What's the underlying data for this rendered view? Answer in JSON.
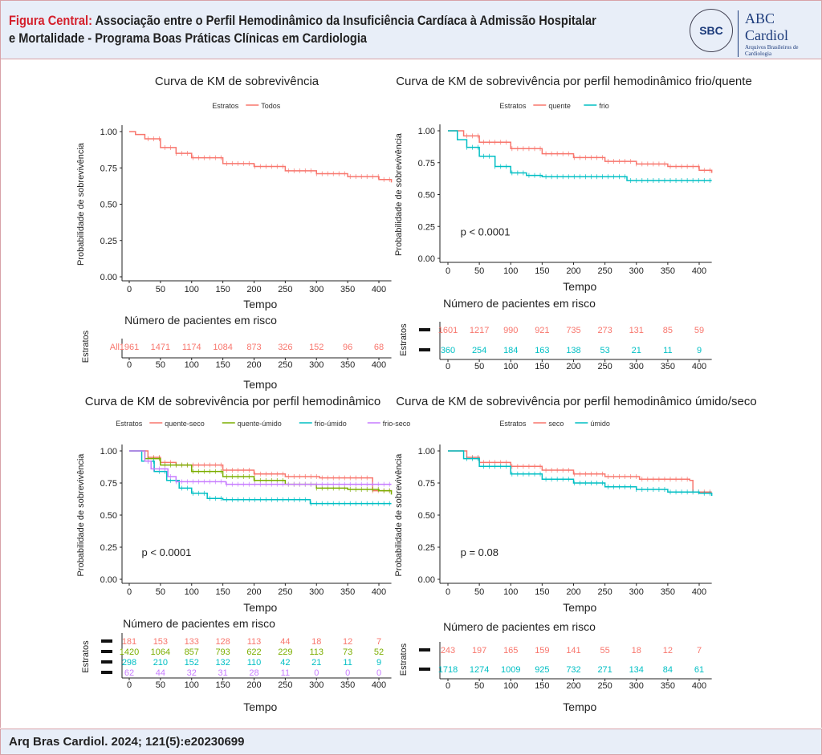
{
  "header": {
    "label": "Figura Central:",
    "title": "Associação entre o Perfil Hemodinâmico da Insuficiência Cardíaca à Admissão Hospitalar",
    "title2": "e Mortalidade - Programa Boas Práticas Clínicas em Cardiologia",
    "logo_text": "SBC",
    "logo_ring": "SOCIEDADE BRASILEIRA DE CARDIOLOGIA",
    "journal": "ABC Cardiol",
    "journal_sub": "Arquivos Brasileiros de Cardiologia"
  },
  "footer": {
    "citation": "Arq Bras Cardiol. 2024; 121(5):e20230699"
  },
  "colors": {
    "red": "#f8766d",
    "cyan": "#00bfc4",
    "green": "#7cae00",
    "purple": "#c77cff"
  },
  "chart_data": [
    {
      "type": "line",
      "title": "Curva de KM de sobrevivência",
      "xlabel": "Tempo",
      "ylabel": "Probabilidade de sobrevivência",
      "legend_title": "Estratos",
      "legend_position": "top",
      "xlim": [
        0,
        420
      ],
      "ylim": [
        0,
        1
      ],
      "xticks": [
        0,
        50,
        100,
        150,
        200,
        250,
        300,
        350,
        400
      ],
      "yticks": [
        "0.00",
        "0.25",
        "0.50",
        "0.75",
        "1.00"
      ],
      "pvalue": "",
      "series": [
        {
          "name": "Todos",
          "color": "#f8766d",
          "points": [
            [
              0,
              1
            ],
            [
              10,
              0.98
            ],
            [
              25,
              0.95
            ],
            [
              50,
              0.89
            ],
            [
              75,
              0.85
            ],
            [
              100,
              0.82
            ],
            [
              150,
              0.78
            ],
            [
              200,
              0.76
            ],
            [
              250,
              0.73
            ],
            [
              300,
              0.71
            ],
            [
              350,
              0.69
            ],
            [
              400,
              0.67
            ],
            [
              420,
              0.65
            ]
          ]
        }
      ],
      "risk_table": {
        "title": "Número de pacientes em risco",
        "ylabel": "Estratos",
        "xlabel": "Tempo",
        "rows": [
          {
            "label": "All",
            "color": "#f8766d",
            "values": [
              1961,
              1471,
              1174,
              1084,
              873,
              326,
              152,
              96,
              68
            ]
          }
        ]
      }
    },
    {
      "type": "line",
      "title": "Curva de KM de sobrevivência por perfil hemodinâmico frio/quente",
      "xlabel": "Tempo",
      "ylabel": "Probabilidade de sobrevivência",
      "legend_title": "Estratos",
      "legend_position": "top",
      "xlim": [
        0,
        420
      ],
      "ylim": [
        0,
        1
      ],
      "xticks": [
        0,
        50,
        100,
        150,
        200,
        250,
        300,
        350,
        400
      ],
      "yticks": [
        "0.00",
        "0.25",
        "0.50",
        "0.75",
        "1.00"
      ],
      "pvalue": "p < 0.0001",
      "series": [
        {
          "name": "quente",
          "color": "#f8766d",
          "points": [
            [
              0,
              1
            ],
            [
              25,
              0.96
            ],
            [
              50,
              0.91
            ],
            [
              100,
              0.86
            ],
            [
              150,
              0.82
            ],
            [
              200,
              0.79
            ],
            [
              250,
              0.76
            ],
            [
              300,
              0.74
            ],
            [
              350,
              0.72
            ],
            [
              400,
              0.69
            ],
            [
              420,
              0.67
            ]
          ]
        },
        {
          "name": "frio",
          "color": "#00bfc4",
          "points": [
            [
              0,
              1
            ],
            [
              15,
              0.93
            ],
            [
              30,
              0.87
            ],
            [
              50,
              0.8
            ],
            [
              75,
              0.72
            ],
            [
              100,
              0.67
            ],
            [
              125,
              0.65
            ],
            [
              150,
              0.64
            ],
            [
              280,
              0.64
            ],
            [
              285,
              0.61
            ],
            [
              420,
              0.61
            ]
          ]
        }
      ],
      "risk_table": {
        "title": "Número de pacientes em risco",
        "ylabel": "Estratos",
        "xlabel": "",
        "rows": [
          {
            "label": "",
            "color": "#f8766d",
            "values": [
              1601,
              1217,
              990,
              921,
              735,
              273,
              131,
              85,
              59
            ]
          },
          {
            "label": "",
            "color": "#00bfc4",
            "values": [
              360,
              254,
              184,
              163,
              138,
              53,
              21,
              11,
              9
            ]
          }
        ]
      }
    },
    {
      "type": "line",
      "title": "Curva de KM de sobrevivência por perfil hemodinâmico",
      "xlabel": "Tempo",
      "ylabel": "Probabilidade de sobrevivência",
      "legend_title": "Estratos",
      "legend_position": "top",
      "xlim": [
        0,
        420
      ],
      "ylim": [
        0,
        1
      ],
      "xticks": [
        0,
        50,
        100,
        150,
        200,
        250,
        300,
        350,
        400
      ],
      "yticks": [
        "0.00",
        "0.25",
        "0.50",
        "0.75",
        "1.00"
      ],
      "pvalue": "p < 0.0001",
      "series": [
        {
          "name": "quente-seco",
          "color": "#f8766d",
          "points": [
            [
              0,
              1
            ],
            [
              30,
              0.95
            ],
            [
              50,
              0.91
            ],
            [
              75,
              0.89
            ],
            [
              100,
              0.89
            ],
            [
              150,
              0.85
            ],
            [
              200,
              0.82
            ],
            [
              250,
              0.8
            ],
            [
              305,
              0.79
            ],
            [
              385,
              0.79
            ],
            [
              390,
              0.69
            ],
            [
              420,
              0.68
            ]
          ]
        },
        {
          "name": "quente-úmido",
          "color": "#7cae00",
          "points": [
            [
              0,
              1
            ],
            [
              25,
              0.94
            ],
            [
              50,
              0.89
            ],
            [
              100,
              0.84
            ],
            [
              150,
              0.8
            ],
            [
              200,
              0.77
            ],
            [
              250,
              0.74
            ],
            [
              300,
              0.71
            ],
            [
              350,
              0.7
            ],
            [
              400,
              0.69
            ],
            [
              420,
              0.66
            ]
          ]
        },
        {
          "name": "frio-úmido",
          "color": "#00bfc4",
          "points": [
            [
              0,
              1
            ],
            [
              20,
              0.92
            ],
            [
              40,
              0.84
            ],
            [
              60,
              0.77
            ],
            [
              80,
              0.71
            ],
            [
              100,
              0.67
            ],
            [
              125,
              0.63
            ],
            [
              150,
              0.62
            ],
            [
              285,
              0.62
            ],
            [
              290,
              0.59
            ],
            [
              420,
              0.59
            ]
          ]
        },
        {
          "name": "frio-seco",
          "color": "#c77cff",
          "points": [
            [
              0,
              1
            ],
            [
              25,
              0.92
            ],
            [
              35,
              0.86
            ],
            [
              60,
              0.86
            ],
            [
              62,
              0.8
            ],
            [
              75,
              0.76
            ],
            [
              150,
              0.76
            ],
            [
              155,
              0.74
            ],
            [
              420,
              0.74
            ]
          ]
        }
      ],
      "risk_table": {
        "title": "Número de pacientes em risco",
        "ylabel": "Estratos",
        "xlabel": "Tempo",
        "rows": [
          {
            "label": "",
            "color": "#f8766d",
            "values": [
              181,
              153,
              133,
              128,
              113,
              44,
              18,
              12,
              7
            ]
          },
          {
            "label": "",
            "color": "#7cae00",
            "values": [
              1420,
              1064,
              857,
              793,
              622,
              229,
              113,
              73,
              52
            ]
          },
          {
            "label": "",
            "color": "#00bfc4",
            "values": [
              298,
              210,
              152,
              132,
              110,
              42,
              21,
              11,
              9
            ]
          },
          {
            "label": "",
            "color": "#c77cff",
            "values": [
              62,
              44,
              32,
              31,
              28,
              11,
              0,
              0,
              0
            ]
          }
        ]
      }
    },
    {
      "type": "line",
      "title": "Curva de KM de sobrevivência por perfil hemodinâmico úmido/seco",
      "xlabel": "Tempo",
      "ylabel": "Probabilidade de sobrevivência",
      "legend_title": "Estratos",
      "legend_position": "top",
      "xlim": [
        0,
        420
      ],
      "ylim": [
        0,
        1
      ],
      "xticks": [
        0,
        50,
        100,
        150,
        200,
        250,
        300,
        350,
        400
      ],
      "yticks": [
        "0.00",
        "0.25",
        "0.50",
        "0.75",
        "1.00"
      ],
      "pvalue": "p = 0.08",
      "series": [
        {
          "name": "seco",
          "color": "#f8766d",
          "points": [
            [
              0,
              1
            ],
            [
              30,
              0.95
            ],
            [
              50,
              0.91
            ],
            [
              100,
              0.88
            ],
            [
              150,
              0.85
            ],
            [
              200,
              0.82
            ],
            [
              250,
              0.8
            ],
            [
              305,
              0.78
            ],
            [
              385,
              0.77
            ],
            [
              390,
              0.68
            ],
            [
              420,
              0.68
            ]
          ]
        },
        {
          "name": "úmido",
          "color": "#00bfc4",
          "points": [
            [
              0,
              1
            ],
            [
              25,
              0.94
            ],
            [
              50,
              0.88
            ],
            [
              100,
              0.82
            ],
            [
              150,
              0.78
            ],
            [
              200,
              0.75
            ],
            [
              250,
              0.72
            ],
            [
              300,
              0.7
            ],
            [
              350,
              0.68
            ],
            [
              400,
              0.67
            ],
            [
              420,
              0.65
            ]
          ]
        }
      ],
      "risk_table": {
        "title": "Número de pacientes em risco",
        "ylabel": "Estratos",
        "xlabel": "Tempo",
        "rows": [
          {
            "label": "",
            "color": "#f8766d",
            "values": [
              243,
              197,
              165,
              159,
              141,
              55,
              18,
              12,
              7
            ]
          },
          {
            "label": "",
            "color": "#00bfc4",
            "values": [
              1718,
              1274,
              1009,
              925,
              732,
              271,
              134,
              84,
              61
            ]
          }
        ]
      }
    }
  ]
}
